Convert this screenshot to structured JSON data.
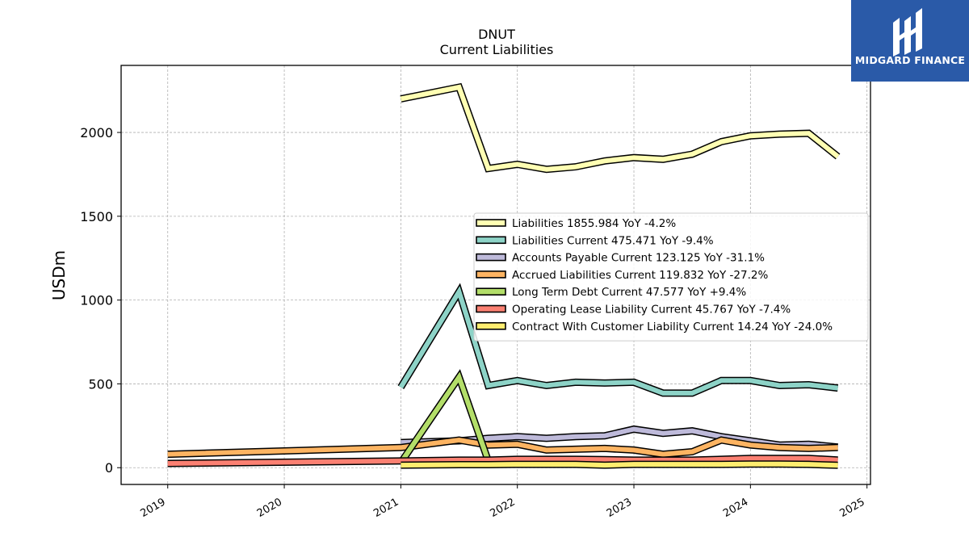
{
  "chart_data": {
    "type": "line",
    "title": "DNUT",
    "subtitle": "Current  Liabilities",
    "ylabel": "USDm",
    "xlabel": "",
    "ylim": [
      -100,
      2400
    ],
    "xlim": [
      2018.6,
      2025.03
    ],
    "yticks": [
      0,
      500,
      1000,
      1500,
      2000
    ],
    "xticks": [
      "2019",
      "2020",
      "2021",
      "2022",
      "2023",
      "2024",
      "2025"
    ],
    "grid": true,
    "legend_position": "center-right",
    "series": [
      {
        "name": "Liabilities  1855.984 YoY -4.2%",
        "color": "#ffffb3",
        "x": [
          2021.0,
          2021.5,
          2021.75,
          2022.0,
          2022.25,
          2022.5,
          2022.75,
          2023.0,
          2023.25,
          2023.5,
          2023.75,
          2024.0,
          2024.25,
          2024.5,
          2024.75
        ],
        "values": [
          2200,
          2270,
          1785,
          1810,
          1780,
          1795,
          1830,
          1850,
          1840,
          1870,
          1945,
          1980,
          1990,
          1995,
          1856
        ]
      },
      {
        "name": "Liabilities Current  475.471 YoY -9.4%",
        "color": "#8dd3c7",
        "x": [
          2021.0,
          2021.5,
          2021.75,
          2022.0,
          2022.25,
          2022.5,
          2022.75,
          2023.0,
          2023.25,
          2023.5,
          2023.75,
          2024.0,
          2024.25,
          2024.5,
          2024.75
        ],
        "values": [
          480,
          1050,
          490,
          520,
          490,
          510,
          505,
          510,
          445,
          445,
          520,
          520,
          490,
          495,
          475
        ]
      },
      {
        "name": "Accounts Payable Current  123.125 YoY -31.1%",
        "color": "#bebada",
        "x": [
          2021.0,
          2021.5,
          2021.75,
          2022.0,
          2022.25,
          2022.5,
          2022.75,
          2023.0,
          2023.25,
          2023.5,
          2023.75,
          2024.0,
          2024.25,
          2024.5,
          2024.75
        ],
        "values": [
          150,
          160,
          175,
          185,
          175,
          185,
          190,
          230,
          205,
          220,
          185,
          160,
          135,
          140,
          123
        ]
      },
      {
        "name": "Accrued Liabilities Current  119.832 YoY -27.2%",
        "color": "#fdb462",
        "x": [
          2019.0,
          2021.0,
          2021.5,
          2021.75,
          2022.0,
          2022.25,
          2022.5,
          2022.75,
          2023.0,
          2023.25,
          2023.5,
          2023.75,
          2024.0,
          2024.25,
          2024.5,
          2024.75
        ],
        "values": [
          80,
          120,
          165,
          135,
          140,
          105,
          110,
          115,
          105,
          80,
          95,
          165,
          135,
          120,
          115,
          120
        ]
      },
      {
        "name": "Long Term Debt Current  47.577 YoY +9.4%",
        "color": "#b3de69",
        "x": [
          2021.0,
          2021.5,
          2021.75
        ],
        "values": [
          30,
          540,
          40
        ]
      },
      {
        "name": "Operating Lease Liability Current  45.767 YoY -7.4%",
        "color": "#fb8072",
        "x": [
          2019.0,
          2021.0,
          2021.5,
          2021.75,
          2022.0,
          2022.25,
          2022.5,
          2022.75,
          2023.0,
          2023.25,
          2023.5,
          2023.75,
          2024.0,
          2024.25,
          2024.5,
          2024.75
        ],
        "values": [
          25,
          40,
          45,
          45,
          50,
          50,
          50,
          48,
          45,
          45,
          45,
          50,
          55,
          55,
          55,
          46
        ]
      },
      {
        "name": "Contract With Customer Liability Current  14.24 YoY -24.0%",
        "color": "#ffed6f",
        "x": [
          2021.0,
          2021.5,
          2021.75,
          2022.0,
          2022.25,
          2022.5,
          2022.75,
          2023.0,
          2023.25,
          2023.5,
          2023.75,
          2024.0,
          2024.25,
          2024.5,
          2024.75
        ],
        "values": [
          15,
          18,
          18,
          20,
          20,
          20,
          15,
          20,
          20,
          20,
          20,
          22,
          22,
          20,
          14
        ]
      }
    ]
  },
  "logo": {
    "text": "MIDGARD FINANCE",
    "icon": "midgard-logo-mark",
    "background": "#2a5aa8"
  }
}
